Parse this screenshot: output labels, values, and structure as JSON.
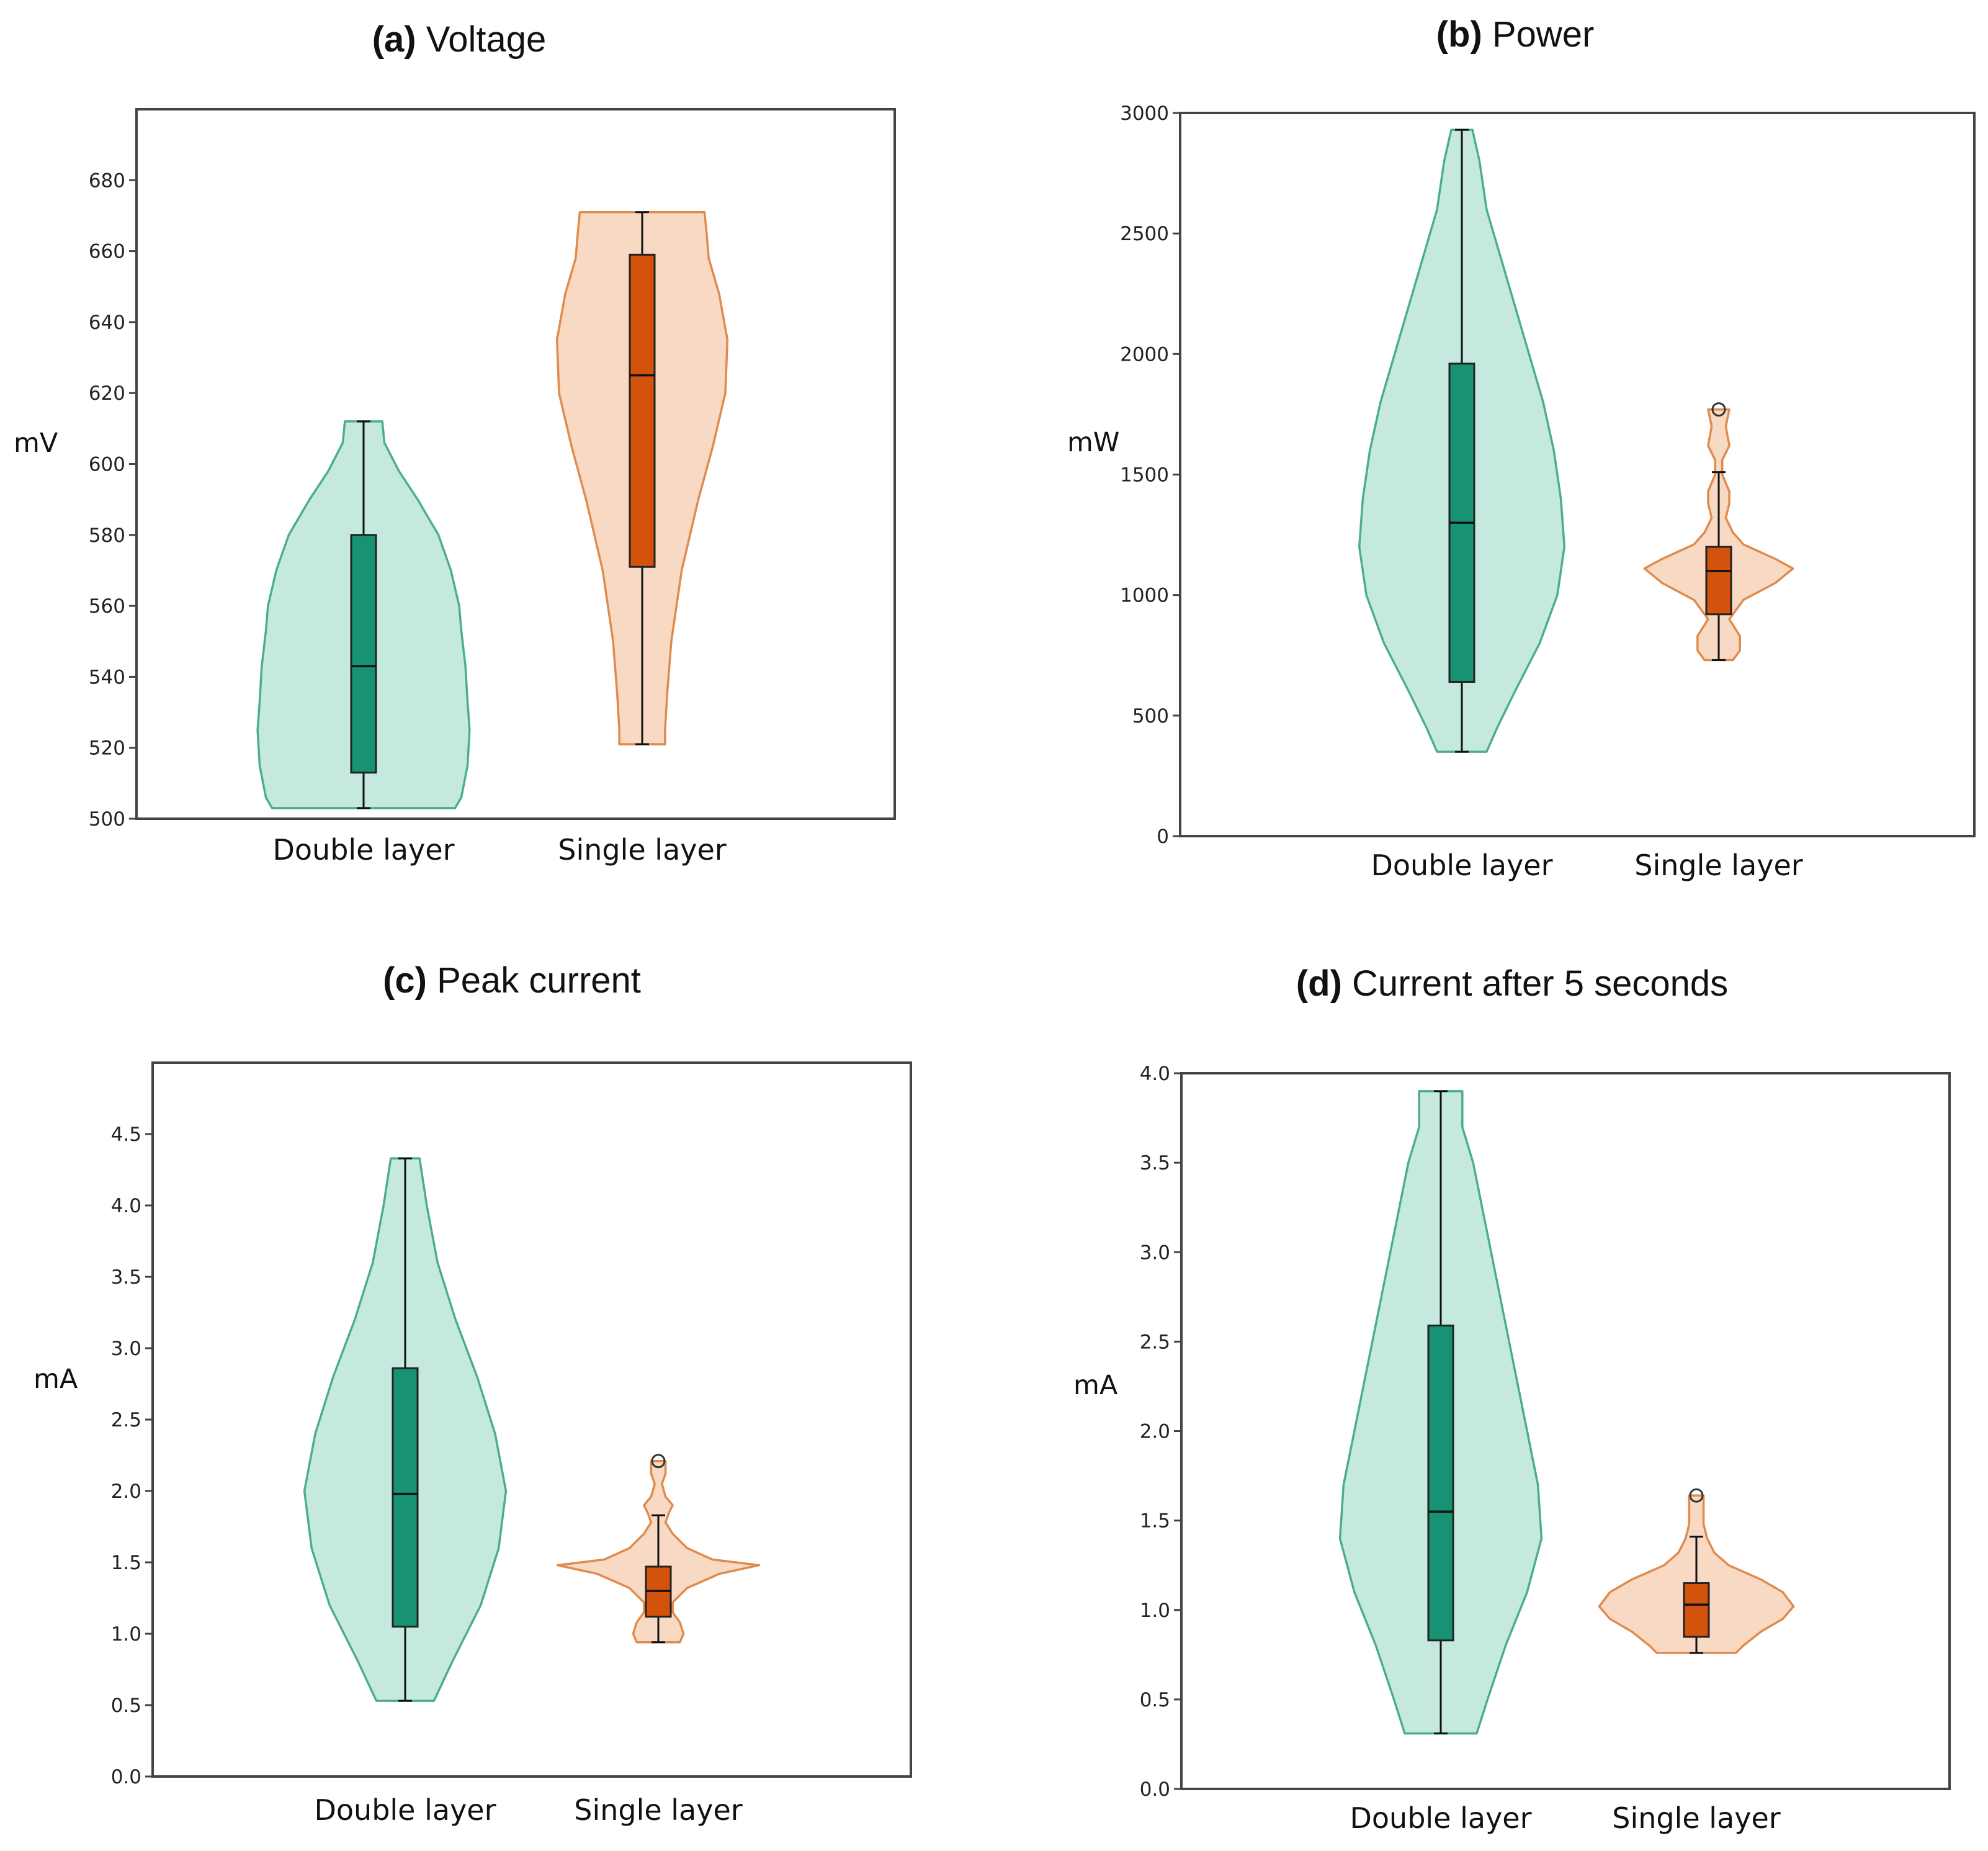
{
  "figure": {
    "palette": {
      "double_fill": "#c6e9df",
      "double_edge": "#4aae8e",
      "double_box": "#179272",
      "single_fill": "#f8d9c3",
      "single_edge": "#e08a4c",
      "single_box": "#d4530c",
      "frame": "#444444",
      "text": "#111111"
    }
  },
  "chart_data": [
    {
      "id": "a",
      "type": "violin",
      "title_letter": "(a)",
      "title_text": "Voltage",
      "xlabel": "",
      "ylabel": "mV",
      "ylim": [
        500,
        700
      ],
      "yticks": [
        500,
        520,
        540,
        560,
        580,
        600,
        620,
        640,
        660,
        680
      ],
      "tick_labels": [
        "500",
        "520",
        "540",
        "560",
        "580",
        "600",
        "620",
        "640",
        "660",
        "680"
      ],
      "categories": [
        "Double layer",
        "Single layer"
      ],
      "groups": [
        {
          "name": "Double layer",
          "min": 503,
          "q1": 513,
          "median": 543,
          "q3": 580,
          "max": 612,
          "outliers": [],
          "density": [
            [
              503,
              44
            ],
            [
              506,
              47
            ],
            [
              515,
              50
            ],
            [
              525,
              51
            ],
            [
              533,
              50
            ],
            [
              543,
              49
            ],
            [
              553,
              47
            ],
            [
              560,
              46
            ],
            [
              570,
              42
            ],
            [
              580,
              36
            ],
            [
              590,
              26
            ],
            [
              598,
              17
            ],
            [
              606,
              10
            ],
            [
              612,
              9
            ]
          ]
        },
        {
          "name": "Single layer",
          "min": 521,
          "q1": 571,
          "median": 625,
          "q3": 659,
          "max": 671,
          "outliers": [],
          "density": [
            [
              521,
              11
            ],
            [
              525,
              11
            ],
            [
              535,
              12
            ],
            [
              550,
              14
            ],
            [
              570,
              19
            ],
            [
              590,
              27
            ],
            [
              605,
              34
            ],
            [
              620,
              40
            ],
            [
              635,
              41
            ],
            [
              648,
              37
            ],
            [
              658,
              32
            ],
            [
              665,
              31
            ],
            [
              671,
              30
            ]
          ]
        }
      ]
    },
    {
      "id": "b",
      "type": "violin",
      "title_letter": "(b)",
      "title_text": "Power",
      "xlabel": "",
      "ylabel": "mW",
      "ylim": [
        0,
        3000
      ],
      "yticks": [
        0,
        500,
        1000,
        1500,
        2000,
        2500,
        3000
      ],
      "tick_labels": [
        "0",
        "500",
        "1000",
        "1500",
        "2000",
        "2500",
        "3000"
      ],
      "categories": [
        "Double layer",
        "Single layer"
      ],
      "groups": [
        {
          "name": "Double layer",
          "min": 350,
          "q1": 640,
          "median": 1300,
          "q3": 1960,
          "max": 2930,
          "outliers": [],
          "density": [
            [
              350,
              7
            ],
            [
              450,
              10
            ],
            [
              600,
              15
            ],
            [
              800,
              22
            ],
            [
              1000,
              27
            ],
            [
              1200,
              29
            ],
            [
              1400,
              28
            ],
            [
              1600,
              26
            ],
            [
              1800,
              23
            ],
            [
              2000,
              19
            ],
            [
              2200,
              15
            ],
            [
              2400,
              11
            ],
            [
              2600,
              7
            ],
            [
              2800,
              5
            ],
            [
              2930,
              3
            ]
          ]
        },
        {
          "name": "Single layer",
          "min": 730,
          "q1": 920,
          "median": 1100,
          "q3": 1200,
          "max": 1510,
          "outliers": [
            1770
          ],
          "density": [
            [
              730,
              4
            ],
            [
              770,
              6
            ],
            [
              830,
              6
            ],
            [
              900,
              3
            ],
            [
              980,
              7
            ],
            [
              1050,
              16
            ],
            [
              1110,
              21
            ],
            [
              1150,
              16
            ],
            [
              1210,
              7
            ],
            [
              1260,
              4
            ],
            [
              1320,
              2
            ],
            [
              1380,
              3
            ],
            [
              1430,
              3
            ],
            [
              1500,
              1
            ],
            [
              1560,
              1
            ],
            [
              1620,
              3
            ],
            [
              1700,
              2
            ],
            [
              1770,
              3
            ]
          ]
        }
      ]
    },
    {
      "id": "c",
      "type": "violin",
      "title_letter": "(c)",
      "title_text": "Peak current",
      "xlabel": "",
      "ylabel": "mA",
      "ylim": [
        0,
        5.0
      ],
      "yticks": [
        0,
        0.5,
        1,
        1.5,
        2,
        2.5,
        3,
        3.5,
        4,
        4.5
      ],
      "tick_labels": [
        "0.0",
        "0.5",
        "1.0",
        "1.5",
        "2.0",
        "2.5",
        "3.0",
        "3.5",
        "4.0",
        "4.5"
      ],
      "categories": [
        "Double layer",
        "Single layer"
      ],
      "groups": [
        {
          "name": "Double layer",
          "min": 0.53,
          "q1": 1.05,
          "median": 1.98,
          "q3": 2.86,
          "max": 4.33,
          "outliers": [],
          "density": [
            [
              0.53,
              8
            ],
            [
              0.8,
              13
            ],
            [
              1.2,
              21
            ],
            [
              1.6,
              26
            ],
            [
              2.0,
              28
            ],
            [
              2.4,
              25
            ],
            [
              2.8,
              20
            ],
            [
              3.2,
              14
            ],
            [
              3.6,
              9
            ],
            [
              4.0,
              6
            ],
            [
              4.33,
              4
            ]
          ]
        },
        {
          "name": "Single layer",
          "min": 0.94,
          "q1": 1.12,
          "median": 1.3,
          "q3": 1.47,
          "max": 1.83,
          "outliers": [
            2.21
          ],
          "density": [
            [
              0.94,
              6
            ],
            [
              1.0,
              7
            ],
            [
              1.08,
              6
            ],
            [
              1.15,
              4
            ],
            [
              1.22,
              4
            ],
            [
              1.32,
              8
            ],
            [
              1.42,
              17
            ],
            [
              1.48,
              28
            ],
            [
              1.52,
              15
            ],
            [
              1.6,
              8
            ],
            [
              1.7,
              4
            ],
            [
              1.78,
              2
            ],
            [
              1.85,
              3
            ],
            [
              1.9,
              4
            ],
            [
              1.96,
              2
            ],
            [
              2.05,
              1
            ],
            [
              2.12,
              2
            ],
            [
              2.21,
              2
            ]
          ]
        }
      ]
    },
    {
      "id": "d",
      "type": "violin",
      "title_letter": "(d)",
      "title_text": "Current after 5 seconds",
      "xlabel": "",
      "ylabel": "mA",
      "ylim": [
        0,
        4.0
      ],
      "yticks": [
        0,
        0.5,
        1,
        1.5,
        2,
        2.5,
        3,
        3.5,
        4
      ],
      "tick_labels": [
        "0.0",
        "0.5",
        "1.0",
        "1.5",
        "2.0",
        "2.5",
        "3.0",
        "3.5",
        "4.0"
      ],
      "categories": [
        "Double layer",
        "Single layer"
      ],
      "groups": [
        {
          "name": "Double layer",
          "min": 0.31,
          "q1": 0.83,
          "median": 1.55,
          "q3": 2.59,
          "max": 3.9,
          "outliers": [],
          "density": [
            [
              0.31,
              10
            ],
            [
              0.5,
              13
            ],
            [
              0.8,
              18
            ],
            [
              1.1,
              24
            ],
            [
              1.4,
              28
            ],
            [
              1.7,
              27
            ],
            [
              2.0,
              24
            ],
            [
              2.3,
              21
            ],
            [
              2.6,
              18
            ],
            [
              2.9,
              15
            ],
            [
              3.2,
              12
            ],
            [
              3.5,
              9
            ],
            [
              3.7,
              6
            ],
            [
              3.9,
              6
            ]
          ]
        },
        {
          "name": "Single layer",
          "min": 0.76,
          "q1": 0.85,
          "median": 1.03,
          "q3": 1.15,
          "max": 1.41,
          "outliers": [
            1.64
          ],
          "density": [
            [
              0.76,
              11
            ],
            [
              0.8,
              13
            ],
            [
              0.88,
              18
            ],
            [
              0.95,
              24
            ],
            [
              1.02,
              27
            ],
            [
              1.1,
              24
            ],
            [
              1.17,
              18
            ],
            [
              1.25,
              9
            ],
            [
              1.32,
              5
            ],
            [
              1.4,
              3
            ],
            [
              1.48,
              2
            ],
            [
              1.56,
              2
            ],
            [
              1.64,
              2
            ]
          ]
        }
      ]
    }
  ]
}
